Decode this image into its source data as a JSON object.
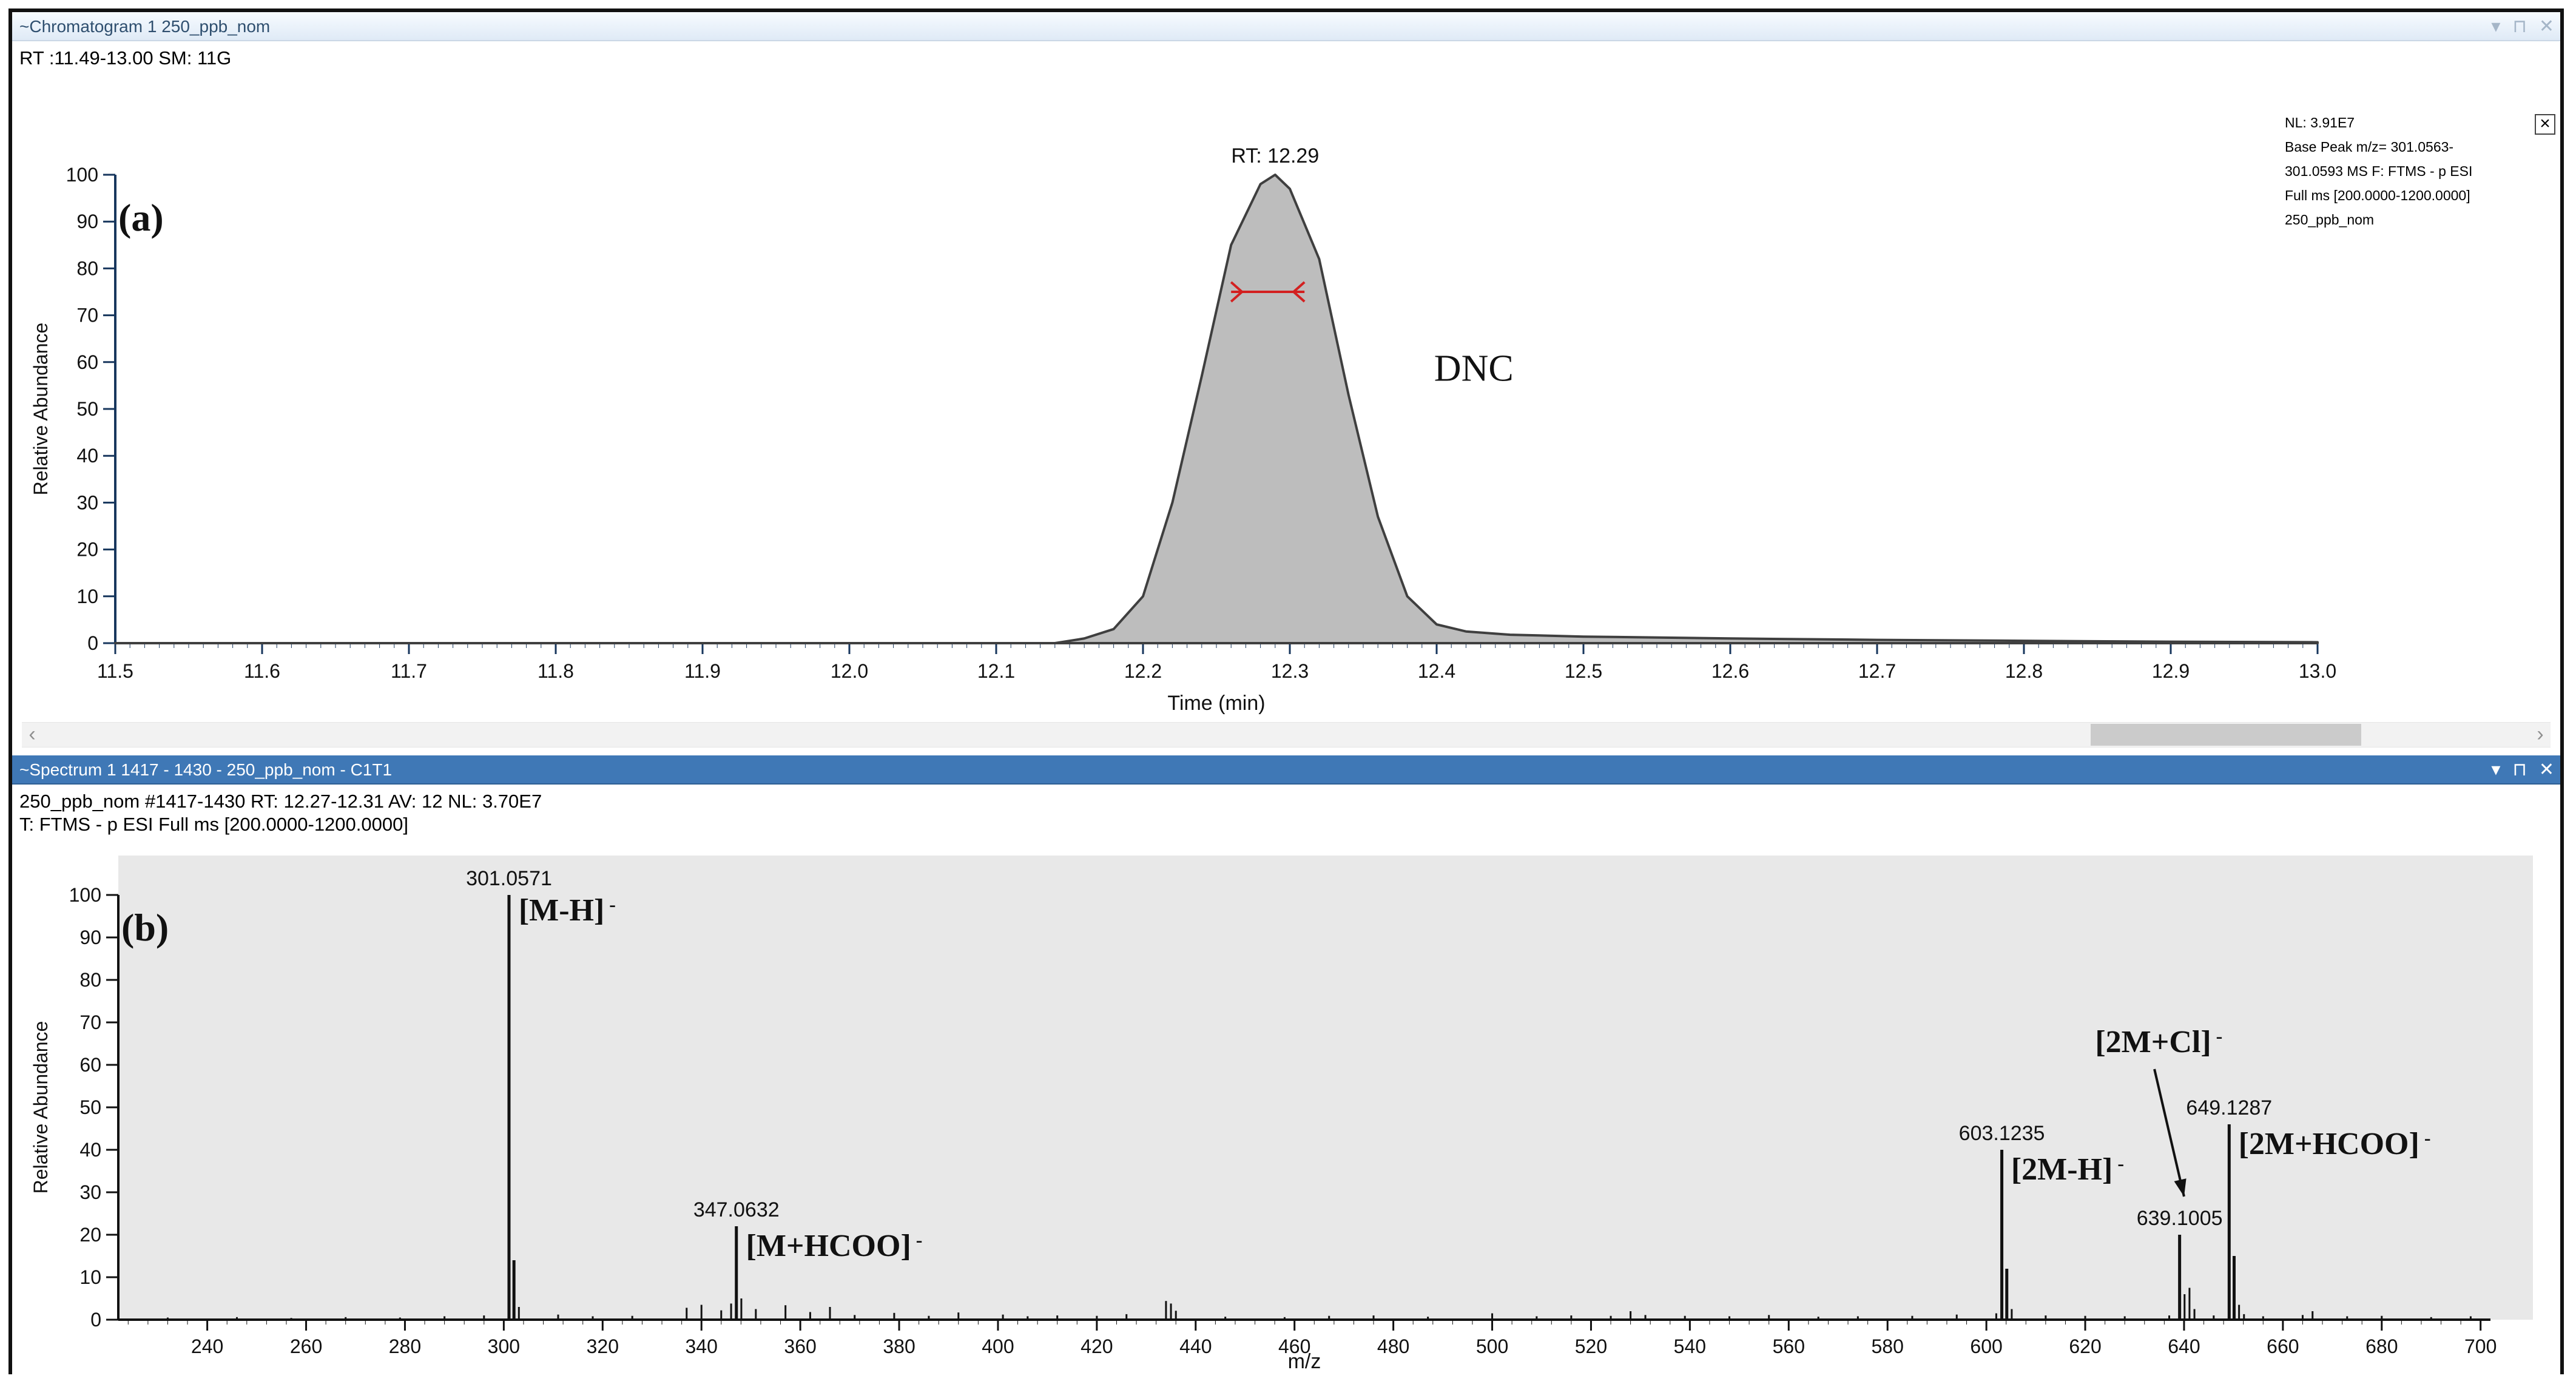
{
  "windows": {
    "chromatogram": {
      "title": "~Chromatogram  1  250_ppb_nom",
      "controls": [
        "▾",
        "⊓",
        "✕"
      ],
      "info_line": "RT :11.49-13.00 SM: 11G",
      "legend_text": "NL: 3.91E7\nBase Peak m/z= 301.0563-\n301.0593 MS  F: FTMS - p ESI\nFull ms [200.0000-1200.0000]\n250_ppb_nom",
      "close_label": "×",
      "scroll_left": "‹",
      "scroll_right": "›"
    },
    "spectrum": {
      "title": "~Spectrum  1  1417 - 1430  - 250_ppb_nom - C1T1",
      "controls": [
        "▾",
        "⊓",
        "✕"
      ],
      "info_line_1": "250_ppb_nom #1417-1430  RT: 12.27-12.31 AV: 12 NL: 3.70E7",
      "info_line_2": "T: FTMS - p ESI Full ms [200.0000-1200.0000]"
    }
  },
  "chart_data": [
    {
      "type": "area",
      "panel_label": "(a)",
      "xlabel": "Time (min)",
      "ylabel": "Relative Abundance",
      "xlim": [
        11.5,
        13.0
      ],
      "ylim": [
        0,
        100
      ],
      "x_ticks": [
        11.5,
        11.6,
        11.7,
        11.8,
        11.9,
        12.0,
        12.1,
        12.2,
        12.3,
        12.4,
        12.5,
        12.6,
        12.7,
        12.8,
        12.9,
        13.0
      ],
      "y_ticks": [
        0,
        10,
        20,
        30,
        40,
        50,
        60,
        70,
        80,
        90,
        100
      ],
      "series": [
        {
          "x": [
            11.5,
            12.0,
            12.14,
            12.16,
            12.18,
            12.2,
            12.22,
            12.24,
            12.26,
            12.28,
            12.29,
            12.3,
            12.32,
            12.34,
            12.36,
            12.38,
            12.4,
            12.42,
            12.45,
            12.5,
            12.6,
            12.7,
            12.8,
            12.9,
            13.0
          ],
          "y": [
            0,
            0,
            0,
            1,
            3,
            10,
            30,
            57,
            85,
            98,
            100,
            97,
            82,
            53,
            27,
            10,
            4,
            2.5,
            1.8,
            1.4,
            1.0,
            0.7,
            0.5,
            0.3,
            0.2
          ]
        }
      ],
      "annotations": [
        {
          "x": 12.29,
          "y": 100,
          "text": "RT: 12.29"
        },
        {
          "x": 12.39,
          "y": 56,
          "text": "DNC"
        }
      ],
      "width_marker": {
        "x_start": 12.26,
        "x_end": 12.31,
        "y": 75
      }
    },
    {
      "type": "bar",
      "panel_label": "(b)",
      "xlabel": "m/z",
      "ylabel": "Relative Abundance",
      "xlim": [
        222,
        702
      ],
      "ylim": [
        0,
        100
      ],
      "x_ticks": [
        240,
        260,
        280,
        300,
        320,
        340,
        360,
        380,
        400,
        420,
        440,
        460,
        480,
        500,
        520,
        540,
        560,
        580,
        600,
        620,
        640,
        660,
        680,
        700
      ],
      "y_ticks": [
        0,
        10,
        20,
        30,
        40,
        50,
        60,
        70,
        80,
        90,
        100
      ],
      "x": [
        232,
        246,
        257,
        268,
        279,
        288,
        296,
        301.0571,
        302.06,
        303.06,
        311,
        318,
        326,
        337,
        340,
        344,
        346,
        347.0632,
        348.07,
        351,
        357,
        362,
        366,
        371,
        379,
        386,
        392,
        401,
        406,
        412,
        420,
        426,
        434,
        435,
        436,
        446,
        458,
        467,
        476,
        487,
        500,
        509,
        516,
        524,
        528,
        531,
        539,
        548,
        556,
        566,
        574,
        585,
        594,
        602,
        603.1235,
        604.13,
        605.13,
        612,
        620,
        628,
        637,
        639.1005,
        640.1,
        641.1,
        642.1,
        646,
        649.1287,
        650.13,
        651.13,
        652.13,
        656,
        664,
        666,
        673,
        680,
        690,
        698
      ],
      "values": [
        0.5,
        0.6,
        0.4,
        0.6,
        0.5,
        0.8,
        1.0,
        100,
        14,
        3,
        1.2,
        0.8,
        0.9,
        2.8,
        3.5,
        2.2,
        3.8,
        22,
        5,
        2.5,
        3.4,
        1.8,
        3.0,
        1.1,
        1.6,
        0.9,
        1.7,
        1.2,
        0.8,
        1.0,
        0.9,
        1.3,
        4.4,
        3.8,
        2.1,
        0.7,
        0.6,
        0.9,
        1.0,
        0.7,
        1.5,
        0.8,
        1.0,
        0.9,
        2.0,
        1.1,
        0.9,
        0.8,
        1.1,
        0.7,
        0.8,
        0.9,
        1.2,
        1.5,
        40,
        12,
        2.5,
        1.0,
        0.9,
        0.8,
        1.0,
        20,
        6,
        7.5,
        2.5,
        1.0,
        46,
        15,
        3.5,
        1.3,
        0.8,
        1.1,
        2.0,
        0.8,
        0.9,
        0.6,
        0.8
      ],
      "value_labels": [
        {
          "x": 301.0571,
          "y": 100,
          "text": "301.0571"
        },
        {
          "x": 347.0632,
          "y": 22,
          "text": "347.0632"
        },
        {
          "x": 603.1235,
          "y": 40,
          "text": "603.1235"
        },
        {
          "x": 639.1005,
          "y": 20,
          "text": "639.1005"
        },
        {
          "x": 649.1287,
          "y": 46,
          "text": "649.1287"
        }
      ],
      "annotations": [
        {
          "x": 303,
          "y": 94,
          "text": "[M-H]",
          "superscript": "-"
        },
        {
          "x": 349,
          "y": 15,
          "text": "[M+HCOO]",
          "superscript": "-"
        },
        {
          "x": 605,
          "y": 33,
          "text": "[2M-H]",
          "superscript": "-"
        },
        {
          "x": 622,
          "y": 63,
          "text": "[2M+Cl]",
          "superscript": "-"
        },
        {
          "x": 651,
          "y": 39,
          "text": "[2M+HCOO]",
          "superscript": "-"
        }
      ],
      "arrow": {
        "from_x": 634,
        "from_y": 59,
        "to_x": 640,
        "to_y": 29
      }
    }
  ],
  "colors": {
    "axis": "#17365d",
    "peak_fill": "#bdbdbd",
    "peak_outline": "#3f3f3f",
    "marker": "#d32020",
    "spectrum_background": "#e8e8e8",
    "spectrum_bar": "#111111"
  }
}
